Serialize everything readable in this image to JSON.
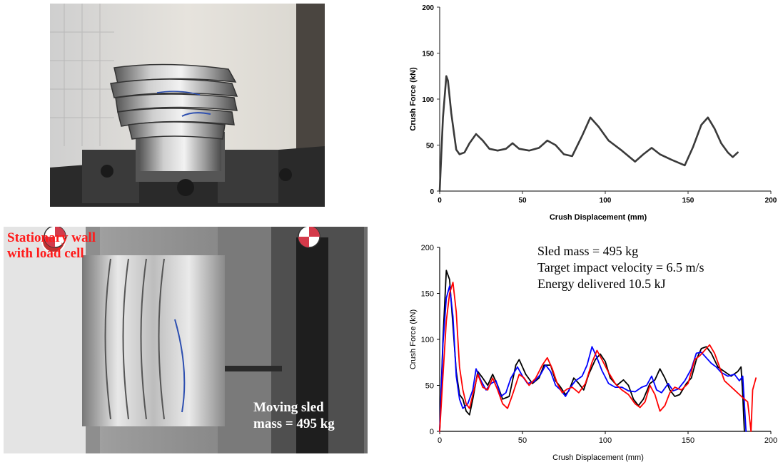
{
  "photos": {
    "top": {
      "alt_icon": "crushed-tube-photo"
    },
    "bottom": {
      "alt_icon": "sled-test-photo",
      "label_wall_line1": "Stationary wall",
      "label_wall_line2": "with load cell",
      "label_sled_line1": "Moving sled",
      "label_sled_line2": "mass = 495 kg"
    }
  },
  "chart_data": [
    {
      "type": "line",
      "title": "",
      "xlabel": "Crush Displacement (mm)",
      "ylabel": "Crush Force (kN)",
      "xlim": [
        0,
        200
      ],
      "ylim": [
        0,
        200
      ],
      "xticks": [
        0,
        50,
        100,
        150,
        200
      ],
      "yticks": [
        0,
        50,
        100,
        150,
        200
      ],
      "grid": false,
      "series": [
        {
          "color": "#3a3a3a",
          "points": [
            [
              0,
              0
            ],
            [
              2,
              80
            ],
            [
              4,
              125
            ],
            [
              5,
              120
            ],
            [
              7,
              85
            ],
            [
              10,
              45
            ],
            [
              12,
              40
            ],
            [
              15,
              42
            ],
            [
              18,
              52
            ],
            [
              22,
              62
            ],
            [
              26,
              55
            ],
            [
              30,
              46
            ],
            [
              35,
              44
            ],
            [
              40,
              46
            ],
            [
              44,
              52
            ],
            [
              48,
              46
            ],
            [
              54,
              44
            ],
            [
              60,
              47
            ],
            [
              65,
              55
            ],
            [
              70,
              50
            ],
            [
              75,
              40
            ],
            [
              80,
              38
            ],
            [
              86,
              60
            ],
            [
              91,
              80
            ],
            [
              96,
              70
            ],
            [
              102,
              55
            ],
            [
              110,
              44
            ],
            [
              118,
              32
            ],
            [
              123,
              40
            ],
            [
              128,
              47
            ],
            [
              133,
              40
            ],
            [
              140,
              34
            ],
            [
              148,
              28
            ],
            [
              153,
              48
            ],
            [
              158,
              72
            ],
            [
              162,
              80
            ],
            [
              166,
              68
            ],
            [
              170,
              52
            ],
            [
              174,
              42
            ],
            [
              177,
              37
            ],
            [
              180,
              42
            ]
          ]
        }
      ]
    },
    {
      "type": "line",
      "title": "",
      "xlabel": "Crush Displacement (mm)",
      "ylabel": "Crush Force (kN)",
      "xlim": [
        0,
        200
      ],
      "ylim": [
        0,
        200
      ],
      "xticks": [
        0,
        50,
        100,
        150,
        200
      ],
      "yticks": [
        0,
        50,
        100,
        150,
        200
      ],
      "grid": false,
      "annotations": [
        "Sled mass = 495 kg",
        "Target impact velocity = 6.5 m/s",
        "Energy delivered 10.5 kJ"
      ],
      "series": [
        {
          "color": "#000000",
          "points": [
            [
              0,
              0
            ],
            [
              2,
              100
            ],
            [
              4,
              175
            ],
            [
              6,
              165
            ],
            [
              8,
              115
            ],
            [
              10,
              65
            ],
            [
              12,
              40
            ],
            [
              14,
              35
            ],
            [
              16,
              22
            ],
            [
              18,
              18
            ],
            [
              20,
              35
            ],
            [
              23,
              65
            ],
            [
              26,
              58
            ],
            [
              29,
              50
            ],
            [
              32,
              62
            ],
            [
              35,
              50
            ],
            [
              38,
              35
            ],
            [
              42,
              38
            ],
            [
              46,
              72
            ],
            [
              48,
              78
            ],
            [
              52,
              62
            ],
            [
              56,
              52
            ],
            [
              60,
              58
            ],
            [
              63,
              72
            ],
            [
              67,
              72
            ],
            [
              70,
              55
            ],
            [
              73,
              48
            ],
            [
              76,
              40
            ],
            [
              78,
              44
            ],
            [
              81,
              58
            ],
            [
              84,
              52
            ],
            [
              87,
              45
            ],
            [
              90,
              62
            ],
            [
              94,
              78
            ],
            [
              97,
              84
            ],
            [
              100,
              76
            ],
            [
              103,
              58
            ],
            [
              107,
              50
            ],
            [
              111,
              56
            ],
            [
              114,
              50
            ],
            [
              117,
              35
            ],
            [
              120,
              28
            ],
            [
              123,
              35
            ],
            [
              127,
              52
            ],
            [
              130,
              56
            ],
            [
              133,
              68
            ],
            [
              136,
              58
            ],
            [
              139,
              45
            ],
            [
              142,
              38
            ],
            [
              145,
              40
            ],
            [
              149,
              52
            ],
            [
              152,
              58
            ],
            [
              155,
              78
            ],
            [
              158,
              90
            ],
            [
              161,
              92
            ],
            [
              164,
              85
            ],
            [
              168,
              70
            ],
            [
              172,
              65
            ],
            [
              176,
              60
            ],
            [
              180,
              65
            ],
            [
              182,
              70
            ],
            [
              183,
              40
            ],
            [
              184,
              0
            ]
          ]
        },
        {
          "color": "#0000ff",
          "points": [
            [
              0,
              0
            ],
            [
              2,
              95
            ],
            [
              4,
              145
            ],
            [
              6,
              158
            ],
            [
              8,
              125
            ],
            [
              10,
              60
            ],
            [
              12,
              35
            ],
            [
              14,
              25
            ],
            [
              17,
              30
            ],
            [
              20,
              45
            ],
            [
              22,
              68
            ],
            [
              25,
              55
            ],
            [
              28,
              45
            ],
            [
              31,
              52
            ],
            [
              34,
              55
            ],
            [
              37,
              38
            ],
            [
              40,
              42
            ],
            [
              43,
              58
            ],
            [
              47,
              70
            ],
            [
              50,
              60
            ],
            [
              53,
              52
            ],
            [
              57,
              54
            ],
            [
              61,
              62
            ],
            [
              64,
              72
            ],
            [
              67,
              65
            ],
            [
              70,
              50
            ],
            [
              73,
              45
            ],
            [
              76,
              38
            ],
            [
              79,
              48
            ],
            [
              82,
              55
            ],
            [
              86,
              60
            ],
            [
              89,
              72
            ],
            [
              92,
              92
            ],
            [
              95,
              80
            ],
            [
              98,
              66
            ],
            [
              102,
              52
            ],
            [
              106,
              48
            ],
            [
              110,
              48
            ],
            [
              114,
              44
            ],
            [
              118,
              43
            ],
            [
              122,
              48
            ],
            [
              125,
              50
            ],
            [
              128,
              60
            ],
            [
              131,
              45
            ],
            [
              134,
              42
            ],
            [
              138,
              52
            ],
            [
              141,
              44
            ],
            [
              144,
              46
            ],
            [
              148,
              55
            ],
            [
              152,
              68
            ],
            [
              155,
              85
            ],
            [
              158,
              86
            ],
            [
              161,
              80
            ],
            [
              164,
              74
            ],
            [
              167,
              70
            ],
            [
              170,
              64
            ],
            [
              174,
              60
            ],
            [
              178,
              62
            ],
            [
              181,
              55
            ],
            [
              183,
              60
            ],
            [
              185,
              0
            ]
          ]
        },
        {
          "color": "#ff0000",
          "points": [
            [
              0,
              0
            ],
            [
              2,
              60
            ],
            [
              4,
              120
            ],
            [
              6,
              150
            ],
            [
              8,
              162
            ],
            [
              10,
              130
            ],
            [
              12,
              70
            ],
            [
              14,
              45
            ],
            [
              16,
              30
            ],
            [
              18,
              25
            ],
            [
              20,
              40
            ],
            [
              23,
              62
            ],
            [
              26,
              48
            ],
            [
              29,
              45
            ],
            [
              32,
              58
            ],
            [
              35,
              45
            ],
            [
              38,
              30
            ],
            [
              41,
              25
            ],
            [
              44,
              40
            ],
            [
              48,
              62
            ],
            [
              51,
              58
            ],
            [
              54,
              50
            ],
            [
              58,
              58
            ],
            [
              62,
              72
            ],
            [
              65,
              80
            ],
            [
              68,
              68
            ],
            [
              71,
              52
            ],
            [
              74,
              42
            ],
            [
              77,
              46
            ],
            [
              80,
              48
            ],
            [
              84,
              42
            ],
            [
              88,
              52
            ],
            [
              92,
              75
            ],
            [
              95,
              88
            ],
            [
              98,
              78
            ],
            [
              102,
              64
            ],
            [
              106,
              52
            ],
            [
              110,
              45
            ],
            [
              114,
              40
            ],
            [
              118,
              30
            ],
            [
              121,
              26
            ],
            [
              124,
              32
            ],
            [
              127,
              50
            ],
            [
              130,
              40
            ],
            [
              133,
              22
            ],
            [
              136,
              28
            ],
            [
              139,
              42
            ],
            [
              142,
              48
            ],
            [
              146,
              45
            ],
            [
              150,
              52
            ],
            [
              154,
              78
            ],
            [
              157,
              82
            ],
            [
              160,
              88
            ],
            [
              163,
              94
            ],
            [
              166,
              85
            ],
            [
              169,
              70
            ],
            [
              172,
              55
            ],
            [
              175,
              50
            ],
            [
              178,
              45
            ],
            [
              181,
              40
            ],
            [
              184,
              35
            ],
            [
              186,
              32
            ],
            [
              188,
              0
            ],
            [
              189,
              45
            ],
            [
              191,
              58
            ]
          ]
        }
      ]
    }
  ]
}
